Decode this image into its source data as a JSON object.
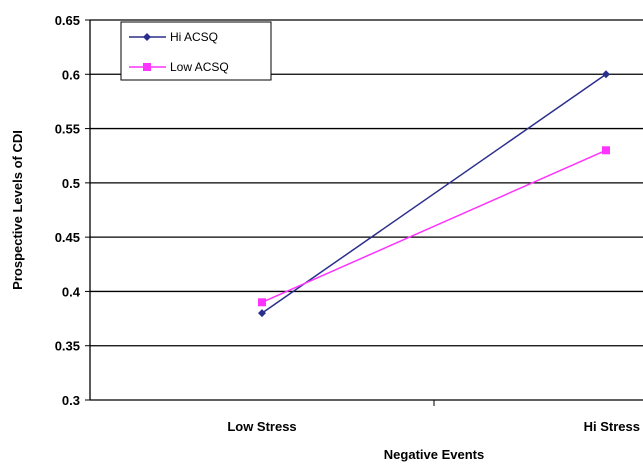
{
  "chart_data": {
    "type": "line",
    "title": "",
    "xlabel": "Negative Events",
    "ylabel": "Prospective Levels of CDI",
    "categories": [
      "Low Stress",
      "Hi Stress"
    ],
    "ylim": [
      0.3,
      0.65
    ],
    "yticks": [
      0.3,
      0.35,
      0.4,
      0.45,
      0.5,
      0.55,
      0.6,
      0.65
    ],
    "grid": true,
    "legend_position": "top-left",
    "series": [
      {
        "name": "Hi ACSQ",
        "values": [
          0.38,
          0.6
        ],
        "color": "#2B2F8C",
        "marker": "diamond"
      },
      {
        "name": "Low ACSQ",
        "values": [
          0.39,
          0.53
        ],
        "color": "#FF33FF",
        "marker": "square"
      }
    ]
  }
}
